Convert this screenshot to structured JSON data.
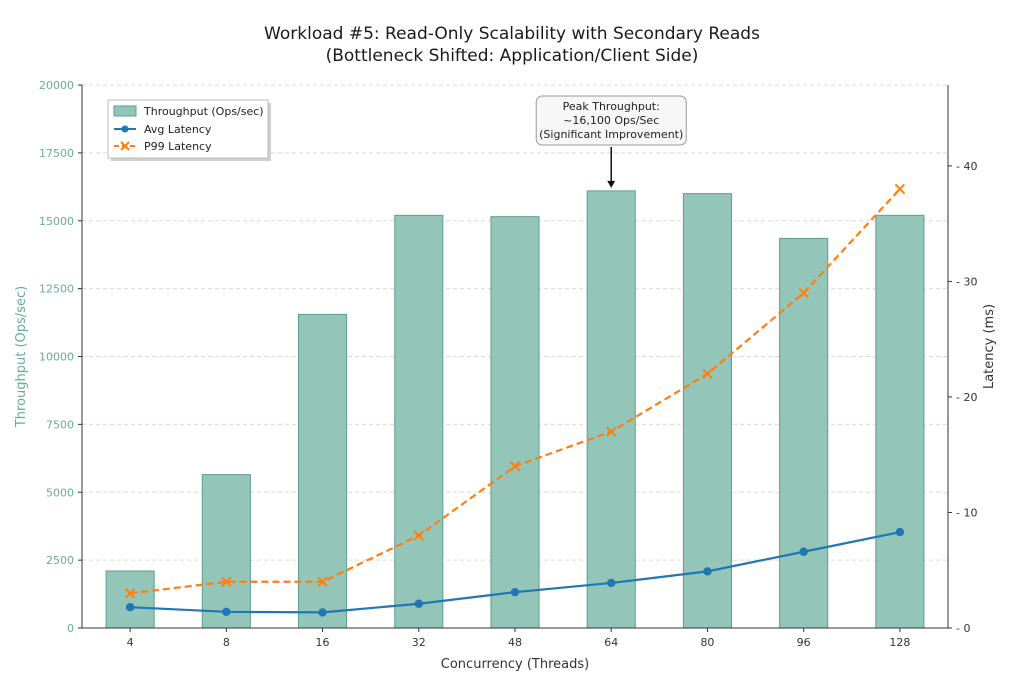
{
  "chart_data": {
    "type": "bar",
    "title": "Workload #5: Read-Only Scalability with Secondary Reads",
    "subtitle": "(Bottleneck Shifted: Application/Client Side)",
    "xlabel": "Concurrency (Threads)",
    "ylabel": "Throughput (Ops/sec)",
    "y2label": "Latency (ms)",
    "categories": [
      "4",
      "8",
      "16",
      "32",
      "48",
      "64",
      "80",
      "96",
      "128"
    ],
    "ylim": [
      0,
      20000
    ],
    "y2lim": [
      0,
      47
    ],
    "yticks": [
      0,
      2500,
      5000,
      7500,
      10000,
      12500,
      15000,
      17500,
      20000
    ],
    "y2ticks": [
      0,
      10,
      20,
      30,
      40
    ],
    "grid": true,
    "legend_position": "top-left",
    "series": [
      {
        "name": "Throughput (Ops/sec)",
        "type": "bar",
        "axis": "left",
        "color": "#93c6b8",
        "values": [
          2100,
          5650,
          11550,
          15200,
          15150,
          16100,
          16000,
          14350,
          15200
        ]
      },
      {
        "name": "Avg Latency",
        "type": "line",
        "axis": "right",
        "color": "#1f77b4",
        "marker": "circle",
        "values": [
          1.8,
          1.4,
          1.35,
          2.1,
          3.1,
          3.9,
          4.9,
          6.6,
          8.3
        ]
      },
      {
        "name": "P99 Latency",
        "type": "line",
        "axis": "right",
        "color": "#ff7f0e",
        "marker": "x",
        "dashed": true,
        "values": [
          3,
          4,
          4,
          8,
          14,
          17,
          22,
          29,
          38
        ]
      }
    ],
    "annotation": {
      "lines": [
        "Peak Throughput:",
        "~16,100 Ops/Sec",
        "(Significant Improvement)"
      ],
      "category": "64"
    }
  }
}
